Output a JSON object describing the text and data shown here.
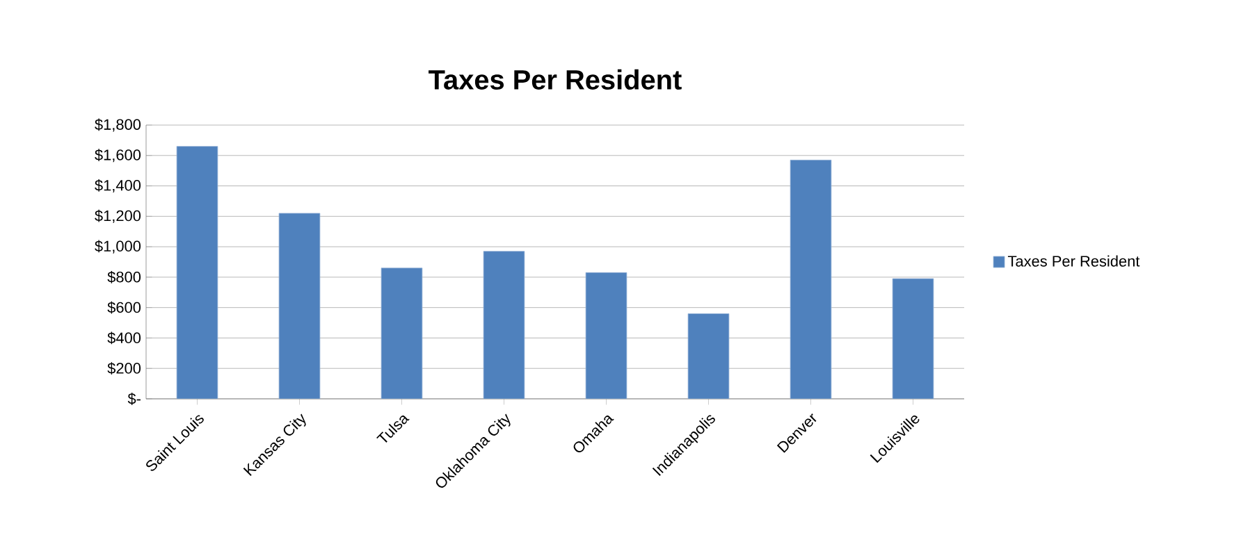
{
  "chart_data": {
    "type": "bar",
    "title": "Taxes Per Resident",
    "categories": [
      "Saint Louis",
      "Kansas City",
      "Tulsa",
      "Oklahoma City",
      "Omaha",
      "Indianapolis",
      "Denver",
      "Louisville"
    ],
    "series": [
      {
        "name": "Taxes Per Resident",
        "color": "#4f81bd",
        "values": [
          1660,
          1220,
          860,
          970,
          830,
          560,
          1570,
          790
        ]
      }
    ],
    "ylim": [
      0,
      1800
    ],
    "yticks": [
      {
        "value": 0,
        "label": "$-"
      },
      {
        "value": 200,
        "label": "$200"
      },
      {
        "value": 400,
        "label": "$400"
      },
      {
        "value": 600,
        "label": "$600"
      },
      {
        "value": 800,
        "label": "$800"
      },
      {
        "value": 1000,
        "label": "$1,000"
      },
      {
        "value": 1200,
        "label": "$1,200"
      },
      {
        "value": 1400,
        "label": "$1,400"
      },
      {
        "value": 1600,
        "label": "$1,600"
      },
      {
        "value": 1800,
        "label": "$1,800"
      }
    ],
    "grid": "y",
    "legend": "right"
  }
}
